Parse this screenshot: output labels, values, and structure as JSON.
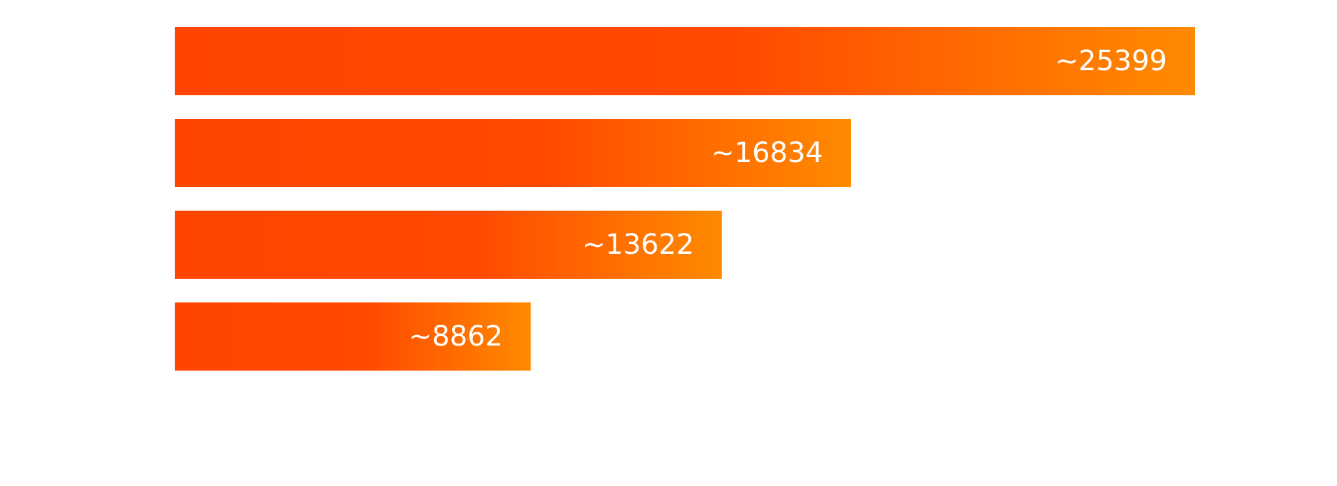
{
  "chart_data": {
    "type": "bar",
    "orientation": "horizontal",
    "categories": [
      "",
      "",
      "",
      ""
    ],
    "values": [
      25399,
      16834,
      13622,
      8862
    ],
    "labels": [
      "~25399",
      "~16834",
      "~13622",
      "~8862"
    ],
    "xlim": [
      0,
      25399
    ],
    "grid": false,
    "legend": "none",
    "colors": {
      "gradient_start": "#FF4500",
      "gradient_mid": "#FF4A00",
      "gradient_end": "#FF8A00",
      "label": "#FFFFFF"
    }
  }
}
